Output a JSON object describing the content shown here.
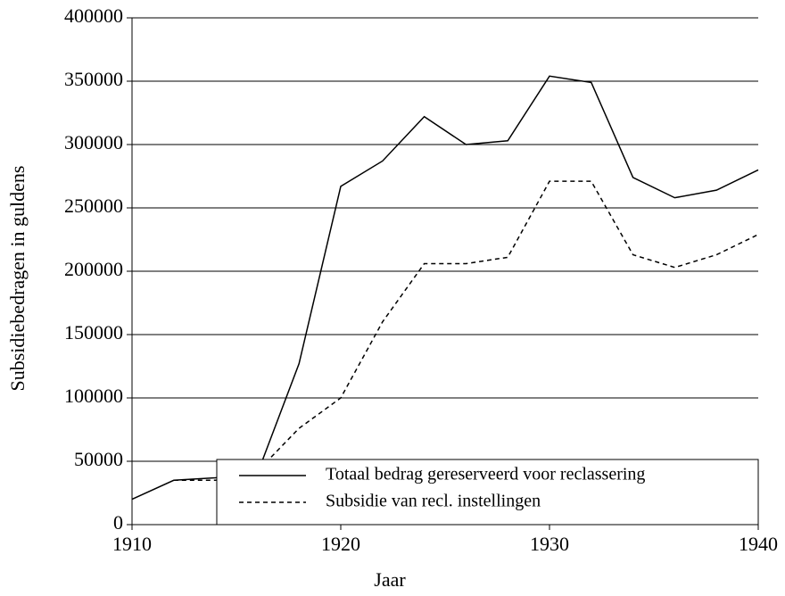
{
  "chart_data": {
    "type": "line",
    "xlabel": "Jaar",
    "ylabel": "Subsidiebedragen in guldens",
    "x": [
      1910,
      1912,
      1914,
      1916,
      1918,
      1920,
      1922,
      1924,
      1926,
      1928,
      1930,
      1932,
      1934,
      1936,
      1938,
      1940
    ],
    "series": [
      {
        "name": "Totaal bedrag gereserveerd voor reclassering",
        "color": "#000000",
        "dashed": false,
        "values": [
          20000,
          35000,
          37000,
          40000,
          127000,
          267000,
          287000,
          322000,
          300000,
          303000,
          354000,
          349000,
          274000,
          258000,
          264000,
          280000
        ]
      },
      {
        "name": "Subsidie van recl. instellingen",
        "color": "#000000",
        "dashed": true,
        "values": [
          null,
          35000,
          35000,
          42000,
          76000,
          100000,
          160000,
          206000,
          206000,
          211000,
          271000,
          271000,
          213000,
          203000,
          213000,
          229000
        ]
      }
    ],
    "xlim": [
      1910,
      1940
    ],
    "xticks": [
      1910,
      1920,
      1930,
      1940
    ],
    "ylim": [
      0,
      400000
    ],
    "yticks": [
      0,
      50000,
      100000,
      150000,
      200000,
      250000,
      300000,
      350000,
      400000
    ],
    "grid": true,
    "legend": "lower right"
  }
}
